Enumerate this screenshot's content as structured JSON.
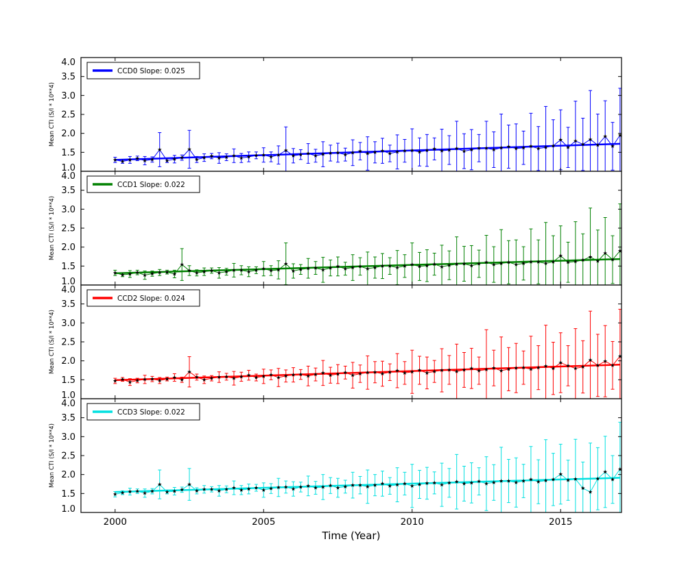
{
  "figure": {
    "xlabel": "Time (Year)",
    "ylabel": "Mean CTI (S/I * 10**4)",
    "background": "#ffffff",
    "axis_color": "#000000",
    "xlim": [
      1998.85,
      2017.05
    ],
    "ylim": [
      1.0,
      4.0
    ],
    "xticks": [
      "2000",
      "2005",
      "2010",
      "2015"
    ],
    "xtick_values": [
      2000,
      2005,
      2010,
      2015
    ],
    "yticks": [
      "1.0",
      "1.5",
      "2.0",
      "2.5",
      "3.0",
      "3.5",
      "4.0"
    ],
    "ytick_values": [
      1.0,
      1.5,
      2.0,
      2.5,
      3.0,
      3.5,
      4.0
    ]
  },
  "chart_data": {
    "type": "line",
    "subtype": "errorbar",
    "grid": false,
    "legend_position": "upper left",
    "marker": "star",
    "marker_color": "#000000",
    "x": [
      2000.0,
      2000.25,
      2000.5,
      2000.75,
      2001.0,
      2001.25,
      2001.5,
      2001.75,
      2002.0,
      2002.25,
      2002.5,
      2002.75,
      2003.0,
      2003.25,
      2003.5,
      2003.75,
      2004.0,
      2004.25,
      2004.5,
      2004.75,
      2005.0,
      2005.25,
      2005.5,
      2005.75,
      2006.0,
      2006.25,
      2006.5,
      2006.75,
      2007.0,
      2007.25,
      2007.5,
      2007.75,
      2008.0,
      2008.25,
      2008.5,
      2008.75,
      2009.0,
      2009.25,
      2009.5,
      2009.75,
      2010.0,
      2010.25,
      2010.5,
      2010.75,
      2011.0,
      2011.25,
      2011.5,
      2011.75,
      2012.0,
      2012.25,
      2012.5,
      2012.75,
      2013.0,
      2013.25,
      2013.5,
      2013.75,
      2014.0,
      2014.25,
      2014.5,
      2014.75,
      2015.0,
      2015.25,
      2015.5,
      2015.75,
      2016.0,
      2016.25,
      2016.5,
      2016.75,
      2017.0
    ],
    "series": [
      {
        "name": "CCD0",
        "legend": "CCD0 Slope: 0.025",
        "slope": 0.025,
        "trend_intercept_2000": 1.3,
        "color": "#0000ff",
        "y": [
          1.3,
          1.26,
          1.3,
          1.34,
          1.28,
          1.31,
          1.57,
          1.28,
          1.32,
          1.36,
          1.58,
          1.31,
          1.36,
          1.4,
          1.35,
          1.37,
          1.41,
          1.35,
          1.38,
          1.42,
          1.43,
          1.38,
          1.43,
          1.55,
          1.41,
          1.44,
          1.47,
          1.41,
          1.45,
          1.48,
          1.49,
          1.44,
          1.49,
          1.53,
          1.47,
          1.5,
          1.54,
          1.47,
          1.51,
          1.54,
          1.55,
          1.51,
          1.55,
          1.59,
          1.54,
          1.56,
          1.6,
          1.53,
          1.57,
          1.61,
          1.61,
          1.57,
          1.62,
          1.65,
          1.6,
          1.62,
          1.66,
          1.6,
          1.63,
          1.67,
          1.83,
          1.63,
          1.8,
          1.71,
          1.84,
          1.69,
          1.92,
          1.66,
          1.95
        ],
        "yerr": [
          0.07,
          0.05,
          0.09,
          0.06,
          0.11,
          0.07,
          0.45,
          0.05,
          0.1,
          0.07,
          0.5,
          0.08,
          0.1,
          0.07,
          0.14,
          0.09,
          0.18,
          0.12,
          0.13,
          0.09,
          0.19,
          0.13,
          0.24,
          0.62,
          0.19,
          0.13,
          0.26,
          0.17,
          0.33,
          0.21,
          0.25,
          0.17,
          0.34,
          0.23,
          0.44,
          0.28,
          0.33,
          0.22,
          0.45,
          0.3,
          0.57,
          0.37,
          0.42,
          0.29,
          0.57,
          0.38,
          0.72,
          0.46,
          0.53,
          0.36,
          0.71,
          0.47,
          0.89,
          0.57,
          0.65,
          0.44,
          0.87,
          0.58,
          1.08,
          0.69,
          0.79,
          0.53,
          1.05,
          0.69,
          1.29,
          0.82,
          0.94,
          0.63,
          1.24
        ]
      },
      {
        "name": "CCD1",
        "legend": "CCD1 Slope: 0.022",
        "slope": 0.022,
        "trend_intercept_2000": 1.31,
        "color": "#008000",
        "y": [
          1.32,
          1.27,
          1.29,
          1.33,
          1.26,
          1.3,
          1.33,
          1.34,
          1.29,
          1.54,
          1.38,
          1.32,
          1.35,
          1.38,
          1.32,
          1.35,
          1.39,
          1.39,
          1.35,
          1.39,
          1.43,
          1.38,
          1.4,
          1.56,
          1.37,
          1.41,
          1.44,
          1.45,
          1.4,
          1.45,
          1.49,
          1.43,
          1.46,
          1.49,
          1.43,
          1.46,
          1.5,
          1.5,
          1.46,
          1.5,
          1.54,
          1.49,
          1.51,
          1.55,
          1.48,
          1.52,
          1.55,
          1.56,
          1.51,
          1.56,
          1.6,
          1.54,
          1.57,
          1.6,
          1.54,
          1.57,
          1.61,
          1.61,
          1.57,
          1.61,
          1.77,
          1.6,
          1.62,
          1.66,
          1.74,
          1.63,
          1.84,
          1.67,
          1.9
        ],
        "yerr": [
          0.07,
          0.05,
          0.09,
          0.06,
          0.11,
          0.07,
          0.08,
          0.05,
          0.1,
          0.42,
          0.13,
          0.08,
          0.1,
          0.07,
          0.14,
          0.09,
          0.18,
          0.12,
          0.13,
          0.09,
          0.19,
          0.13,
          0.24,
          0.55,
          0.19,
          0.13,
          0.26,
          0.17,
          0.33,
          0.21,
          0.25,
          0.17,
          0.34,
          0.23,
          0.44,
          0.28,
          0.33,
          0.22,
          0.45,
          0.3,
          0.57,
          0.37,
          0.42,
          0.29,
          0.57,
          0.38,
          0.72,
          0.46,
          0.53,
          0.36,
          0.71,
          0.47,
          0.89,
          0.57,
          0.65,
          0.44,
          0.87,
          0.58,
          1.08,
          0.69,
          0.79,
          0.53,
          1.05,
          0.69,
          1.29,
          0.82,
          0.94,
          0.63,
          1.24
        ]
      },
      {
        "name": "CCD2",
        "legend": "CCD2 Slope: 0.024",
        "slope": 0.024,
        "trend_intercept_2000": 1.49,
        "color": "#ff0000",
        "y": [
          1.47,
          1.51,
          1.44,
          1.48,
          1.51,
          1.52,
          1.48,
          1.52,
          1.56,
          1.5,
          1.71,
          1.57,
          1.5,
          1.54,
          1.57,
          1.58,
          1.54,
          1.58,
          1.62,
          1.56,
          1.59,
          1.63,
          1.56,
          1.6,
          1.63,
          1.64,
          1.6,
          1.64,
          1.68,
          1.62,
          1.65,
          1.69,
          1.62,
          1.66,
          1.69,
          1.7,
          1.66,
          1.7,
          1.74,
          1.68,
          1.71,
          1.75,
          1.68,
          1.72,
          1.75,
          1.76,
          1.72,
          1.76,
          1.8,
          1.74,
          1.77,
          1.81,
          1.74,
          1.78,
          1.81,
          1.82,
          1.78,
          1.82,
          1.86,
          1.8,
          1.95,
          1.87,
          1.8,
          1.84,
          2.02,
          1.88,
          1.99,
          1.88,
          2.12
        ],
        "yerr": [
          0.07,
          0.05,
          0.09,
          0.06,
          0.11,
          0.07,
          0.08,
          0.05,
          0.1,
          0.07,
          0.4,
          0.08,
          0.1,
          0.07,
          0.14,
          0.09,
          0.18,
          0.12,
          0.13,
          0.09,
          0.19,
          0.13,
          0.24,
          0.16,
          0.19,
          0.13,
          0.26,
          0.17,
          0.33,
          0.21,
          0.25,
          0.17,
          0.34,
          0.23,
          0.44,
          0.28,
          0.33,
          0.22,
          0.45,
          0.3,
          0.57,
          0.37,
          0.42,
          0.29,
          0.57,
          0.38,
          0.72,
          0.46,
          0.53,
          0.36,
          1.05,
          0.47,
          0.89,
          0.57,
          0.65,
          0.44,
          0.87,
          0.58,
          1.08,
          0.69,
          0.79,
          0.53,
          1.05,
          0.69,
          1.29,
          0.82,
          0.94,
          0.63,
          1.24
        ]
      },
      {
        "name": "CCD3",
        "legend": "CCD3 Slope: 0.022",
        "slope": 0.022,
        "trend_intercept_2000": 1.54,
        "color": "#00e0e0",
        "y": [
          1.48,
          1.52,
          1.55,
          1.56,
          1.51,
          1.56,
          1.74,
          1.54,
          1.56,
          1.6,
          1.74,
          1.57,
          1.61,
          1.61,
          1.57,
          1.61,
          1.65,
          1.59,
          1.62,
          1.65,
          1.59,
          1.63,
          1.66,
          1.67,
          1.62,
          1.67,
          1.7,
          1.65,
          1.67,
          1.71,
          1.65,
          1.68,
          1.72,
          1.72,
          1.68,
          1.72,
          1.76,
          1.7,
          1.73,
          1.76,
          1.7,
          1.74,
          1.77,
          1.78,
          1.73,
          1.78,
          1.81,
          1.76,
          1.78,
          1.82,
          1.76,
          1.79,
          1.83,
          1.83,
          1.79,
          1.83,
          1.87,
          1.81,
          1.84,
          1.87,
          2.01,
          1.85,
          1.88,
          1.64,
          1.54,
          1.89,
          2.07,
          1.87,
          2.14
        ],
        "yerr": [
          0.07,
          0.05,
          0.09,
          0.06,
          0.11,
          0.07,
          0.38,
          0.05,
          0.1,
          0.07,
          0.42,
          0.08,
          0.1,
          0.07,
          0.14,
          0.09,
          0.18,
          0.12,
          0.13,
          0.09,
          0.19,
          0.13,
          0.24,
          0.16,
          0.19,
          0.13,
          0.26,
          0.17,
          0.33,
          0.21,
          0.25,
          0.17,
          0.34,
          0.23,
          0.44,
          0.28,
          0.33,
          0.22,
          0.45,
          0.3,
          0.57,
          0.37,
          0.42,
          0.29,
          0.57,
          0.38,
          0.72,
          0.46,
          0.53,
          0.36,
          0.71,
          0.47,
          0.89,
          0.57,
          0.65,
          0.44,
          0.87,
          0.58,
          1.08,
          0.69,
          0.79,
          0.53,
          1.05,
          0.69,
          1.29,
          0.82,
          0.94,
          0.63,
          1.24
        ]
      }
    ]
  }
}
